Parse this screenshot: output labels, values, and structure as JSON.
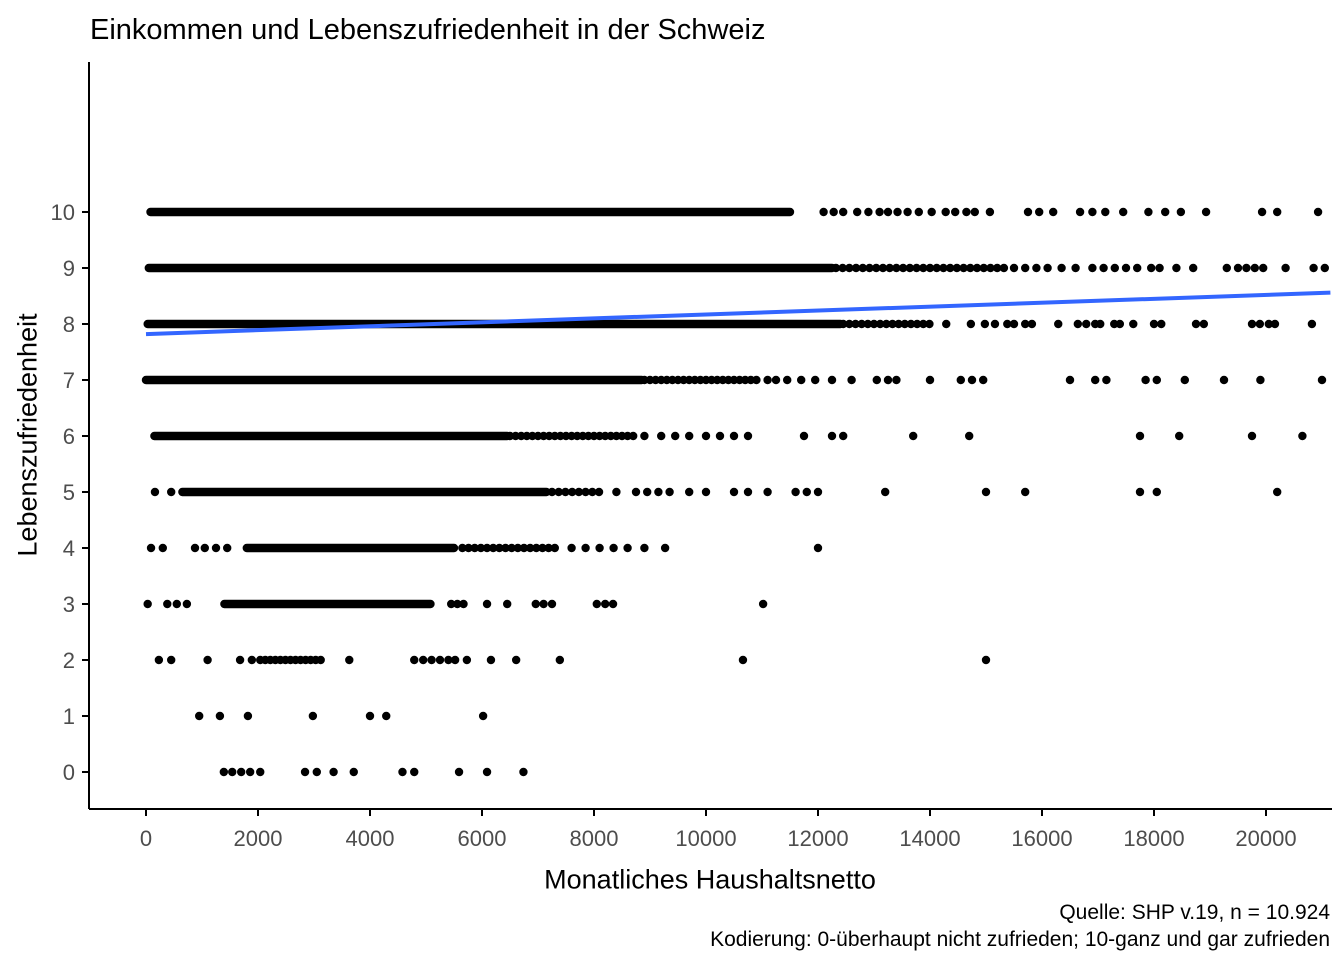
{
  "chart": {
    "title": "Einkommen und Lebenszufriedenheit in der Schweiz",
    "x_axis_label": "Monatliches Haushaltsnetto",
    "y_axis_label": "Lebenszufriedenheit",
    "caption_line1": "Quelle: SHP v.19, n = 10.924",
    "caption_line2": "Kodierung: 0-überhaupt nicht zufrieden; 10-ganz und gar zufrieden"
  },
  "colors": {
    "point": "#000000",
    "trend": "#3366FF",
    "axis_line": "#000000",
    "tick_label": "#4d4d4d",
    "background": "#ffffff"
  },
  "chart_data": {
    "type": "scatter",
    "title": "Einkommen und Lebenszufriedenheit in der Schweiz",
    "xlabel": "Monatliches Haushaltsnetto",
    "ylabel": "Lebenszufriedenheit",
    "x_range": [
      0,
      21150
    ],
    "y_range": [
      0,
      10
    ],
    "x_ticks": [
      0,
      2000,
      4000,
      6000,
      8000,
      10000,
      12000,
      14000,
      16000,
      18000,
      20000
    ],
    "y_ticks": [
      0,
      1,
      2,
      3,
      4,
      5,
      6,
      7,
      8,
      9,
      10
    ],
    "grid": false,
    "legend": "none",
    "n": 10924,
    "trend": {
      "type": "linear",
      "x": [
        0,
        21150
      ],
      "y": [
        7.82,
        8.56
      ],
      "color": "#3366FF",
      "stroke_width": 4
    },
    "point_radius": 4.2,
    "rows": [
      {
        "y": 10,
        "bands": [
          [
            80,
            11500,
            30
          ]
        ],
        "points": [
          12100,
          12280,
          12450,
          12700,
          12900,
          13100,
          13250,
          13420,
          13600,
          13800,
          14030,
          14280,
          14450,
          14650,
          14800,
          15070,
          15750,
          15950,
          16200,
          16680,
          16900,
          17130,
          17450,
          17900,
          18200,
          18480,
          18930,
          19930,
          20200,
          20930
        ]
      },
      {
        "y": 9,
        "bands": [
          [
            50,
            12250,
            30
          ],
          [
            12320,
            15350,
            120
          ]
        ],
        "points": [
          15500,
          15700,
          15900,
          16100,
          16350,
          16600,
          16900,
          17100,
          17300,
          17500,
          17700,
          17950,
          18100,
          18400,
          18700,
          19300,
          19500,
          19650,
          19800,
          19950,
          20350,
          20850,
          21050
        ]
      },
      {
        "y": 8,
        "bands": [
          [
            30,
            12400,
            30
          ],
          [
            12450,
            14050,
            110
          ]
        ],
        "points": [
          14290,
          14730,
          14980,
          15160,
          15380,
          15500,
          15700,
          15820,
          16290,
          16640,
          16790,
          16950,
          17040,
          17290,
          17390,
          17630,
          18000,
          18130,
          18750,
          18890,
          19750,
          19890,
          20050,
          20160,
          20820
        ]
      },
      {
        "y": 7,
        "bands": [
          [
            0,
            8850,
            30
          ],
          [
            8900,
            10900,
            100
          ]
        ],
        "points": [
          11100,
          11250,
          11450,
          11700,
          11950,
          12250,
          12600,
          13050,
          13250,
          13400,
          14000,
          14550,
          14750,
          14950,
          16500,
          16950,
          17150,
          17850,
          18050,
          18550,
          19250,
          19900,
          21000
        ]
      },
      {
        "y": 6,
        "bands": [
          [
            150,
            6450,
            30
          ],
          [
            6500,
            8750,
            100
          ]
        ],
        "points": [
          8900,
          9200,
          9450,
          9700,
          10000,
          10250,
          10500,
          10750,
          11750,
          12250,
          12450,
          13700,
          14700,
          17750,
          18450,
          19750,
          20650
        ]
      },
      {
        "y": 5,
        "bands": [
          [
            650,
            7150,
            30
          ],
          [
            7250,
            8200,
            120
          ]
        ],
        "points": [
          160,
          450,
          8400,
          8750,
          8950,
          9150,
          9350,
          9700,
          10000,
          10500,
          10750,
          11100,
          11600,
          11800,
          12000,
          13200,
          15000,
          15700,
          17750,
          18050,
          20200
        ]
      },
      {
        "y": 4,
        "bands": [
          [
            1800,
            5500,
            45
          ],
          [
            5650,
            7400,
            110
          ]
        ],
        "points": [
          90,
          300,
          875,
          1050,
          1250,
          1450,
          7600,
          7850,
          8100,
          8350,
          8600,
          8900,
          9270,
          12000
        ]
      },
      {
        "y": 3,
        "bands": [
          [
            1400,
            5080,
            55
          ],
          [
            5450,
            5670,
            110
          ]
        ],
        "points": [
          30,
          380,
          550,
          730,
          6090,
          6450,
          6960,
          7100,
          7250,
          8050,
          8200,
          8340,
          11020
        ]
      },
      {
        "y": 2,
        "bands": [
          [
            2040,
            3200,
            90
          ]
        ],
        "points": [
          230,
          450,
          1100,
          1680,
          1890,
          3630,
          4790,
          4950,
          5100,
          5250,
          5400,
          5520,
          5730,
          6160,
          6610,
          7390,
          10660,
          15000
        ]
      },
      {
        "y": 1,
        "bands": [],
        "points": [
          950,
          1320,
          1820,
          2980,
          4000,
          4290,
          6020
        ]
      },
      {
        "y": 0,
        "bands": [],
        "points": [
          1390,
          1540,
          1700,
          1860,
          2040,
          2840,
          3050,
          3350,
          3710,
          4580,
          4790,
          5590,
          6090,
          6740
        ]
      }
    ]
  }
}
